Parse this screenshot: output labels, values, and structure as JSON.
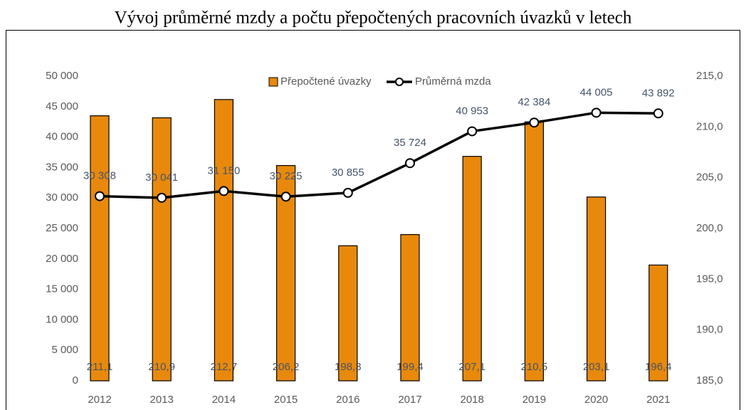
{
  "chart_data": {
    "type": "combo",
    "title": "Vývoj průměrné mzdy a počtu přepočtených pracovních úvazků v letech",
    "categories": [
      "2012",
      "2013",
      "2014",
      "2015",
      "2016",
      "2017",
      "2018",
      "2019",
      "2020",
      "2021"
    ],
    "series": [
      {
        "name": "Přepočtené úvazky",
        "type": "bar",
        "axis": "y2",
        "color": "#e8890c",
        "values": [
          211.1,
          210.9,
          212.7,
          206.2,
          198.3,
          199.4,
          207.1,
          210.5,
          203.1,
          196.4
        ],
        "value_labels": [
          "211,1",
          "210,9",
          "212,7",
          "206,2",
          "198,3",
          "199,4",
          "207,1",
          "210,5",
          "203,1",
          "196,4"
        ]
      },
      {
        "name": "Průměrná mzda",
        "type": "line",
        "color": "#000000",
        "values": [
          30308,
          30041,
          31150,
          30225,
          30855,
          35724,
          40953,
          42384,
          44005,
          43892
        ],
        "value_labels": [
          "30 308",
          "30 041",
          "31 150",
          "30 225",
          "30 855",
          "35 724",
          "40 953",
          "42 384",
          "44 005",
          "43 892"
        ]
      }
    ],
    "ylim": [
      0,
      50000
    ],
    "yticks": [
      0,
      {
        "value": 5000,
        "label": "5 000"
      },
      {
        "value": 10000,
        "label": "10 000"
      },
      {
        "value": 15000,
        "label": "15 000"
      },
      {
        "value": 20000,
        "label": "20 000"
      },
      {
        "value": 25000,
        "label": "25 000"
      },
      {
        "value": 30000,
        "label": "30 000"
      },
      {
        "value": 35000,
        "label": "35 000"
      },
      {
        "value": 40000,
        "label": "40 000"
      },
      {
        "value": 45000,
        "label": "45 000"
      },
      {
        "value": 50000,
        "label": "50 000"
      }
    ],
    "y2lim": [
      185,
      215
    ],
    "y2ticks": [
      {
        "value": 185,
        "label": "185,0"
      },
      {
        "value": 190,
        "label": "190,0"
      },
      {
        "value": 195,
        "label": "195,0"
      },
      {
        "value": 200,
        "label": "200,0"
      },
      {
        "value": 205,
        "label": "205,0"
      },
      {
        "value": 210,
        "label": "210,0"
      },
      {
        "value": 215,
        "label": "215,0"
      }
    ],
    "grid": false,
    "legend": "top"
  }
}
